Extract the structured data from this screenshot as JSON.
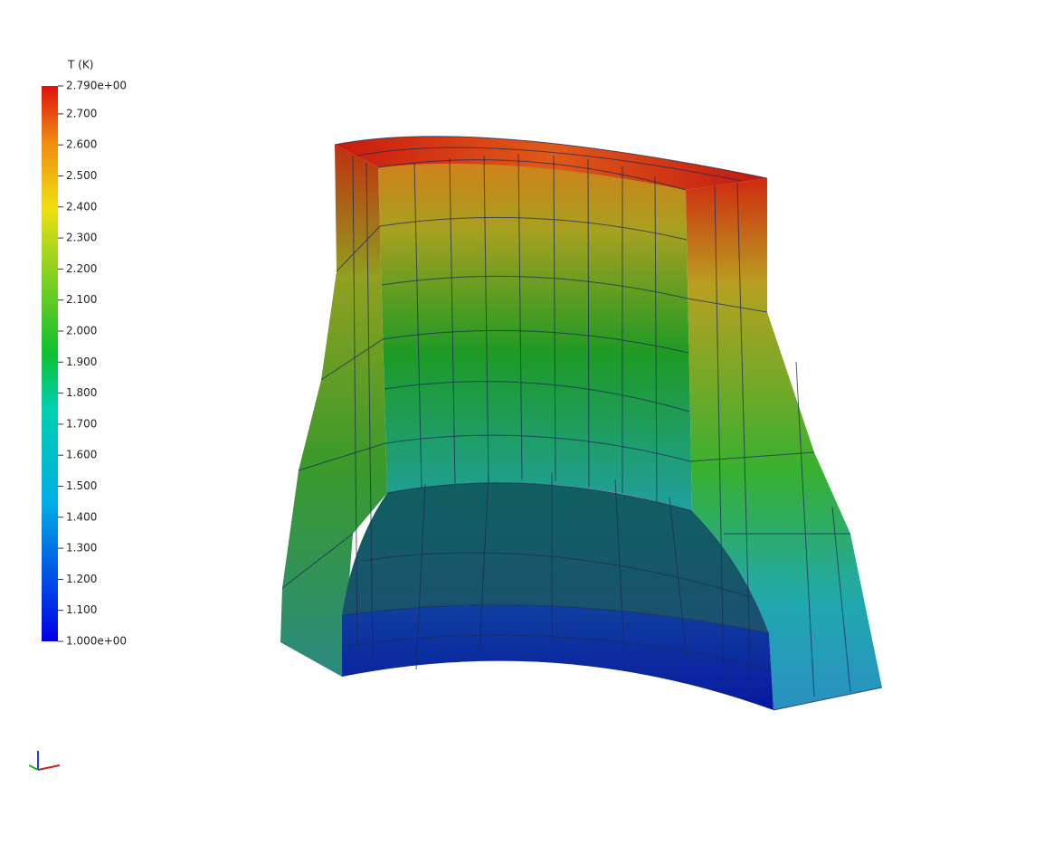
{
  "colorbar": {
    "title": "T (K)",
    "lim": [
      1,
      2.79
    ],
    "ticks": [
      {
        "value": 2.79,
        "label": "2.790e+00"
      },
      {
        "value": 2.7,
        "label": "2.700"
      },
      {
        "value": 2.6,
        "label": "2.600"
      },
      {
        "value": 2.5,
        "label": "2.500"
      },
      {
        "value": 2.4,
        "label": "2.400"
      },
      {
        "value": 2.3,
        "label": "2.300"
      },
      {
        "value": 2.2,
        "label": "2.200"
      },
      {
        "value": 2.1,
        "label": "2.100"
      },
      {
        "value": 2.0,
        "label": "2.000"
      },
      {
        "value": 1.9,
        "label": "1.900"
      },
      {
        "value": 1.8,
        "label": "1.800"
      },
      {
        "value": 1.7,
        "label": "1.700"
      },
      {
        "value": 1.6,
        "label": "1.600"
      },
      {
        "value": 1.5,
        "label": "1.500"
      },
      {
        "value": 1.4,
        "label": "1.400"
      },
      {
        "value": 1.3,
        "label": "1.300"
      },
      {
        "value": 1.2,
        "label": "1.200"
      },
      {
        "value": 1.1,
        "label": "1.100"
      },
      {
        "value": 1,
        "label": "1.000e+00"
      }
    ]
  }
}
